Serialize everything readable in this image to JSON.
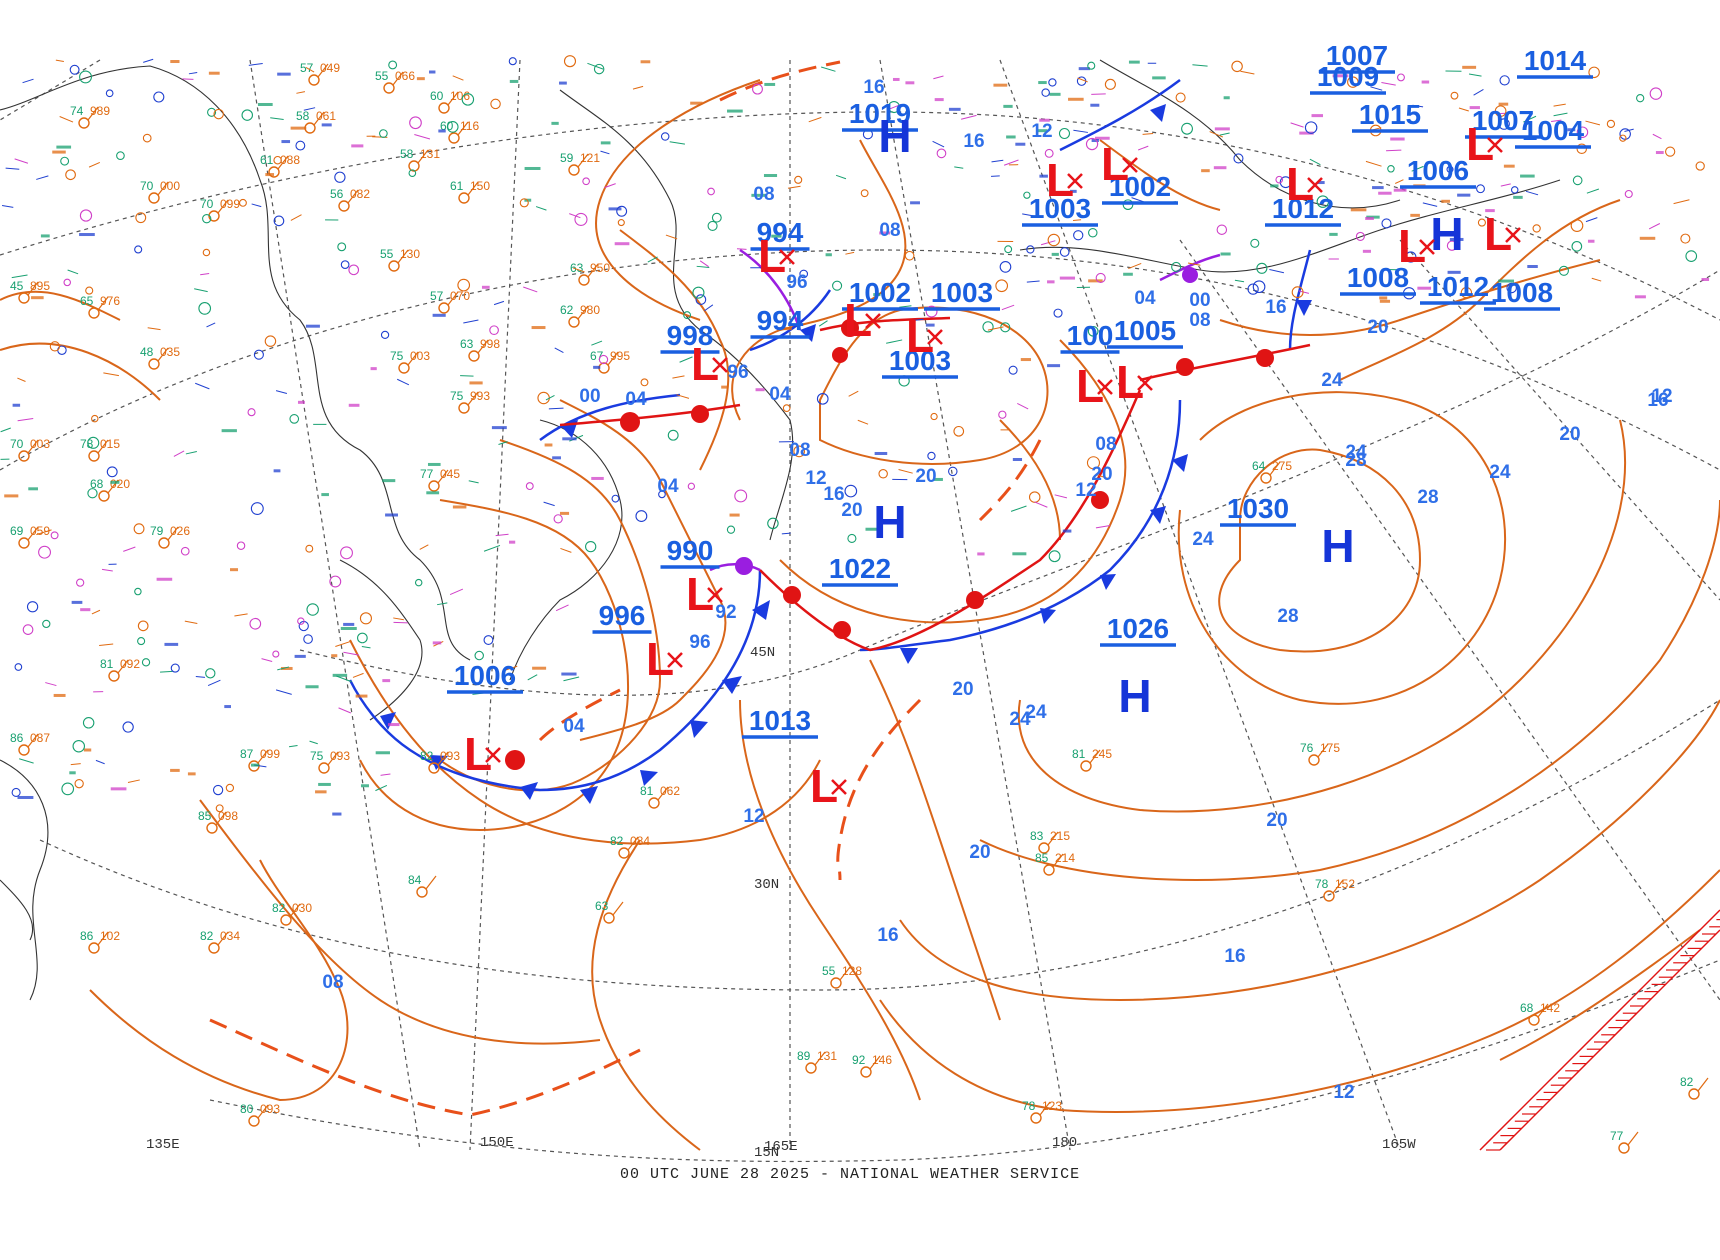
{
  "footer": "00 UTC JUNE 28 2025 - NATIONAL WEATHER SERVICE",
  "colors": {
    "isobar": "#d9661a",
    "cold_front": "#1a3be0",
    "warm_front": "#e01414",
    "occluded": "#9a1ee0",
    "trough": "#e8501a",
    "grid": "#555555",
    "coast": "#333333",
    "pressure_label": "#1a5fe0",
    "high": "#1535d8",
    "low": "#e8141a",
    "station_green": "#18a070",
    "station_pink": "#d040c8",
    "station_orange": "#e06a10",
    "station_blue": "#2040d0"
  },
  "grid_labels": {
    "lat_45": "45N",
    "lat_30": "30N",
    "lat_15": "15N",
    "lon_135e": "135E",
    "lon_150e": "150E",
    "lon_165e": "165E",
    "lon_180": "180",
    "lon_165w": "165W"
  },
  "pressure_centers": [
    {
      "center": "H",
      "value": "1019"
    },
    {
      "center": "L",
      "value": "994"
    },
    {
      "center": "L",
      "value": "994"
    },
    {
      "center": "L",
      "value": "998"
    },
    {
      "center": "L",
      "value": "1002"
    },
    {
      "center": "L",
      "value": "1003"
    },
    {
      "center": "L",
      "value": "1003"
    },
    {
      "center": "L",
      "value": "1003"
    },
    {
      "center": "L",
      "value": "1002"
    },
    {
      "center": "L",
      "value": "1005"
    },
    {
      "center": "L",
      "value": "100"
    },
    {
      "center": "L",
      "value": "990"
    },
    {
      "center": "L",
      "value": "996"
    },
    {
      "center": "L",
      "value": "1006"
    },
    {
      "center": "L",
      "value": "1013"
    },
    {
      "center": "H",
      "value": "1022"
    },
    {
      "center": "H",
      "value": "1030"
    },
    {
      "center": "H",
      "value": "1026"
    },
    {
      "center": "L",
      "value": "1012"
    },
    {
      "center": "L",
      "value": "1015"
    },
    {
      "center": "L",
      "value": "1008"
    },
    {
      "center": "L",
      "value": "1012"
    },
    {
      "center": "L",
      "value": "1008"
    },
    {
      "center": "L",
      "value": "1007"
    },
    {
      "center": "L",
      "value": "1006"
    },
    {
      "center": "L",
      "value": "1004"
    },
    {
      "center": "L",
      "value": "1014"
    },
    {
      "center": "L",
      "value": "1009"
    },
    {
      "center": "L",
      "value": "1007"
    }
  ],
  "isobar_labels": [
    "16",
    "16",
    "12",
    "08",
    "08",
    "96",
    "96",
    "04",
    "00",
    "04",
    "04",
    "08",
    "12",
    "16",
    "20",
    "20",
    "20",
    "24",
    "24",
    "24",
    "28",
    "28",
    "28",
    "24",
    "20",
    "16",
    "12",
    "12",
    "08",
    "04",
    "00",
    "08",
    "16",
    "20",
    "24",
    "12",
    "92",
    "96",
    "16",
    "20",
    "16",
    "12",
    "08",
    "04",
    "20",
    "24",
    "20"
  ],
  "surface_observations": [
    {
      "t": "57",
      "p": "049"
    },
    {
      "t": "58",
      "p": "061"
    },
    {
      "t": "55",
      "p": "066"
    },
    {
      "t": "60",
      "p": "106"
    },
    {
      "t": "60",
      "p": "116"
    },
    {
      "t": "61",
      "p": "088"
    },
    {
      "t": "58",
      "p": "131"
    },
    {
      "t": "61",
      "p": "150"
    },
    {
      "t": "59",
      "p": "121"
    },
    {
      "t": "56",
      "p": "082"
    },
    {
      "t": "70",
      "p": "000"
    },
    {
      "t": "70",
      "p": "099"
    },
    {
      "t": "65",
      "p": "976"
    },
    {
      "t": "48",
      "p": "035"
    },
    {
      "t": "55",
      "p": "130"
    },
    {
      "t": "57",
      "p": "070"
    },
    {
      "t": "63",
      "p": "998"
    },
    {
      "t": "75",
      "p": "003"
    },
    {
      "t": "75",
      "p": "993"
    },
    {
      "t": "77",
      "p": "045"
    },
    {
      "t": "63",
      "p": "950"
    },
    {
      "t": "62",
      "p": "980"
    },
    {
      "t": "67",
      "p": "995"
    },
    {
      "t": "64",
      "p": "275"
    },
    {
      "t": "81",
      "p": "245"
    },
    {
      "t": "83",
      "p": "215"
    },
    {
      "t": "85",
      "p": "214"
    },
    {
      "t": "76",
      "p": "175"
    },
    {
      "t": "78",
      "p": "152"
    },
    {
      "t": "82",
      "p": "084"
    },
    {
      "t": "81",
      "p": "062"
    },
    {
      "t": "55",
      "p": "128"
    },
    {
      "t": "89",
      "p": "131"
    },
    {
      "t": "92",
      "p": "146"
    },
    {
      "t": "78",
      "p": "123"
    },
    {
      "t": "80",
      "p": "093"
    },
    {
      "t": "82",
      "p": "034"
    },
    {
      "t": "86",
      "p": "102"
    },
    {
      "t": "82",
      "p": "030"
    },
    {
      "t": "84",
      "p": ""
    },
    {
      "t": "63",
      "p": ""
    },
    {
      "t": "68",
      "p": "142"
    },
    {
      "t": "82",
      "p": ""
    },
    {
      "t": "77",
      "p": ""
    },
    {
      "t": "45",
      "p": "895"
    },
    {
      "t": "74",
      "p": "989"
    },
    {
      "t": "70",
      "p": "003"
    },
    {
      "t": "78",
      "p": "015"
    },
    {
      "t": "68",
      "p": "020"
    },
    {
      "t": "69",
      "p": "059"
    },
    {
      "t": "79",
      "p": "026"
    },
    {
      "t": "81",
      "p": "092"
    },
    {
      "t": "86",
      "p": "087"
    },
    {
      "t": "85",
      "p": "098"
    },
    {
      "t": "87",
      "p": "099"
    },
    {
      "t": "75",
      "p": "093"
    },
    {
      "t": "82",
      "p": "093"
    }
  ]
}
